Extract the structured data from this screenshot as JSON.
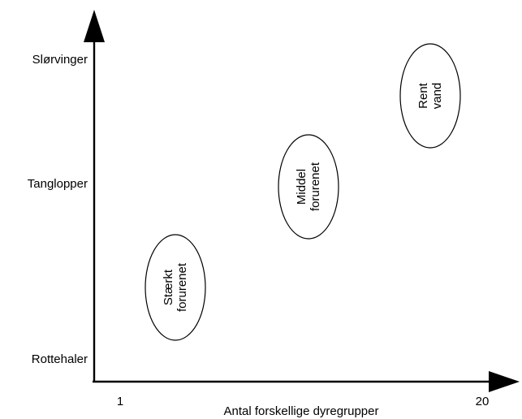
{
  "y_axis": {
    "labels": [
      "Slørvinger",
      "Tanglopper",
      "Rottehaler"
    ]
  },
  "x_axis": {
    "title": "Antal forskellige dyregrupper",
    "tick_min": "1",
    "tick_max": "20"
  },
  "zones": [
    {
      "line1": "Stærkt",
      "line2": "forurenet"
    },
    {
      "line1": "Middel",
      "line2": "forurenet"
    },
    {
      "line1": "Rent",
      "line2": "vand"
    }
  ]
}
